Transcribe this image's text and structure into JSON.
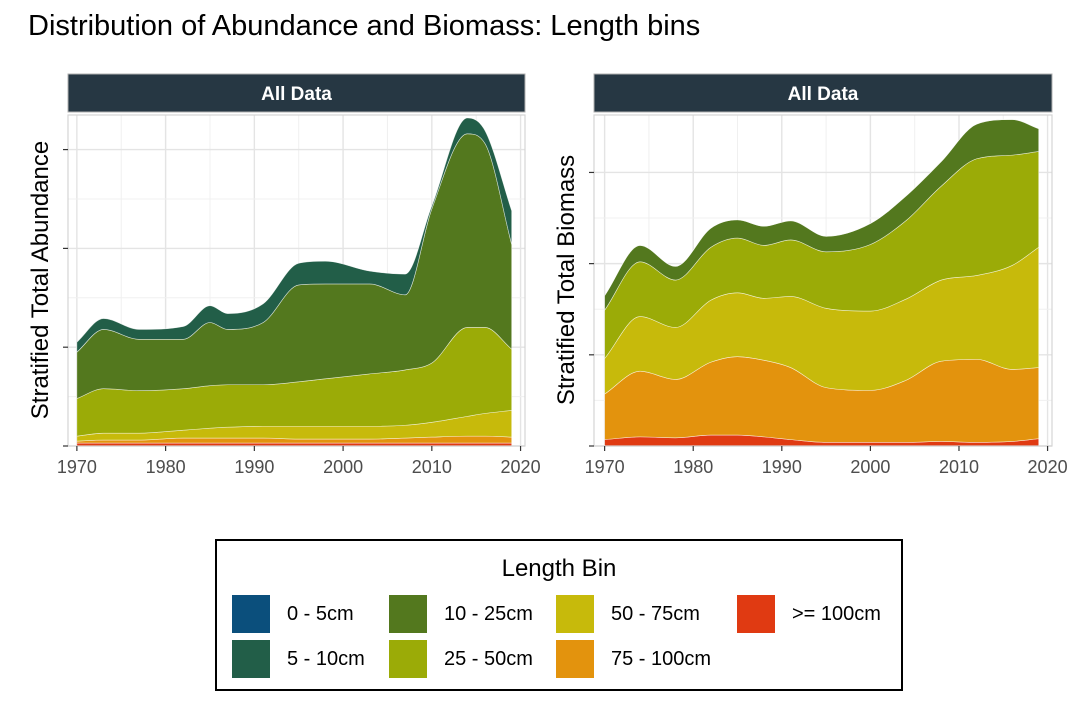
{
  "title": "Distribution of Abundance and Biomass: Length bins",
  "legend": {
    "title": "Length Bin",
    "items": [
      {
        "label": "0 - 5cm",
        "color": "#0b4f7c"
      },
      {
        "label": "5 - 10cm",
        "color": "#225e48"
      },
      {
        "label": "10 - 25cm",
        "color": "#53781e"
      },
      {
        "label": "25 - 50cm",
        "color": "#9bab07"
      },
      {
        "label": "50 - 75cm",
        "color": "#c7ba0b"
      },
      {
        "label": "75 - 100cm",
        "color": "#e3930d"
      },
      {
        "label": ">= 100cm",
        "color": "#e03a12"
      }
    ]
  },
  "chart_data": [
    {
      "type": "area",
      "stacked": true,
      "facet_label": "All Data",
      "ylabel": "Stratified Total Abundance",
      "xlabel": "",
      "x_ticks": [
        1970,
        1980,
        1990,
        2000,
        2010,
        2020
      ],
      "xlim": [
        1969,
        2020.5
      ],
      "ylim": [
        0,
        3.35
      ],
      "y_tick_values": [
        0,
        1,
        2,
        3
      ],
      "grid": true,
      "y_tick_labels_shown": false,
      "x": [
        1970,
        1973,
        1977,
        1982,
        1985,
        1987,
        1991,
        1995,
        1998,
        2003,
        2007,
        2010,
        2014,
        2016,
        2019
      ],
      "series": [
        {
          "name": "0 - 5cm",
          "values": [
            0,
            0,
            0,
            0,
            0,
            0,
            0,
            0,
            0,
            0,
            0,
            0,
            0,
            0,
            0
          ]
        },
        {
          "name": ">= 100cm",
          "values": [
            0.03,
            0.03,
            0.03,
            0.03,
            0.03,
            0.03,
            0.03,
            0.03,
            0.03,
            0.03,
            0.03,
            0.03,
            0.03,
            0.03,
            0.03
          ]
        },
        {
          "name": "75 - 100cm",
          "values": [
            0.02,
            0.03,
            0.03,
            0.05,
            0.05,
            0.05,
            0.05,
            0.04,
            0.04,
            0.04,
            0.05,
            0.06,
            0.07,
            0.07,
            0.06
          ]
        },
        {
          "name": "50 - 75cm",
          "values": [
            0.05,
            0.07,
            0.07,
            0.08,
            0.1,
            0.11,
            0.12,
            0.13,
            0.13,
            0.13,
            0.13,
            0.15,
            0.2,
            0.23,
            0.27
          ]
        },
        {
          "name": "25 - 50cm",
          "values": [
            0.38,
            0.45,
            0.43,
            0.42,
            0.43,
            0.43,
            0.42,
            0.45,
            0.48,
            0.53,
            0.56,
            0.6,
            0.9,
            0.87,
            0.62
          ]
        },
        {
          "name": "10 - 25cm",
          "values": [
            0.47,
            0.6,
            0.52,
            0.5,
            0.64,
            0.56,
            0.63,
            0.98,
            0.96,
            0.91,
            0.76,
            1.56,
            1.96,
            1.86,
            1.06
          ]
        },
        {
          "name": "5 - 10cm",
          "values": [
            0.1,
            0.11,
            0.1,
            0.13,
            0.17,
            0.16,
            0.19,
            0.22,
            0.23,
            0.13,
            0.21,
            0.03,
            0.16,
            0.13,
            0.34
          ]
        }
      ]
    },
    {
      "type": "area",
      "stacked": true,
      "facet_label": "All Data",
      "ylabel": "Stratified Total Biomass",
      "xlabel": "",
      "x_ticks": [
        1970,
        1980,
        1990,
        2000,
        2010,
        2020
      ],
      "xlim": [
        1968.8,
        2020.5
      ],
      "ylim": [
        0,
        3.63
      ],
      "y_tick_values": [
        0,
        1,
        2,
        3
      ],
      "grid": true,
      "y_tick_labels_shown": false,
      "x": [
        1970,
        1974,
        1978,
        1982,
        1985,
        1988,
        1991,
        1995,
        2000,
        2004,
        2008,
        2012,
        2016,
        2019
      ],
      "series": [
        {
          "name": "0 - 5cm",
          "values": [
            0,
            0,
            0,
            0,
            0,
            0,
            0,
            0,
            0,
            0,
            0,
            0,
            0,
            0
          ]
        },
        {
          "name": ">= 100cm",
          "values": [
            0.07,
            0.1,
            0.09,
            0.12,
            0.12,
            0.1,
            0.07,
            0.04,
            0.04,
            0.04,
            0.05,
            0.04,
            0.05,
            0.08
          ]
        },
        {
          "name": "75 - 100cm",
          "values": [
            0.5,
            0.72,
            0.64,
            0.8,
            0.86,
            0.84,
            0.79,
            0.6,
            0.57,
            0.68,
            0.88,
            0.91,
            0.79,
            0.78
          ]
        },
        {
          "name": "50 - 75cm",
          "values": [
            0.39,
            0.6,
            0.57,
            0.68,
            0.7,
            0.68,
            0.78,
            0.87,
            0.87,
            0.89,
            0.89,
            0.92,
            1.14,
            1.32
          ]
        },
        {
          "name": "25 - 50cm",
          "values": [
            0.53,
            0.6,
            0.52,
            0.58,
            0.6,
            0.58,
            0.62,
            0.62,
            0.73,
            0.86,
            1.03,
            1.28,
            1.21,
            1.05
          ]
        },
        {
          "name": "10 - 25cm",
          "values": [
            0.16,
            0.18,
            0.15,
            0.21,
            0.2,
            0.21,
            0.21,
            0.17,
            0.23,
            0.27,
            0.27,
            0.38,
            0.39,
            0.25
          ]
        },
        {
          "name": "5 - 10cm",
          "values": [
            0,
            0,
            0,
            0,
            0,
            0,
            0,
            0,
            0,
            0,
            0,
            0,
            0,
            0
          ]
        }
      ]
    }
  ]
}
